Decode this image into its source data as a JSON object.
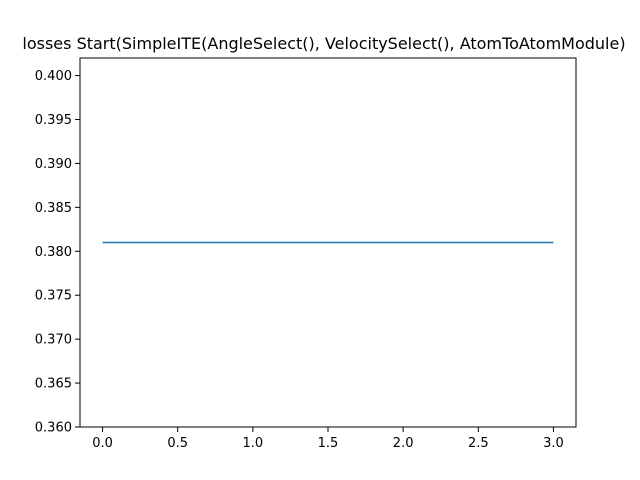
{
  "chart_data": {
    "type": "line",
    "title": "losses Start(SimpleITE(AngleSelect(), VelocitySelect(), AtomToAtomModule)",
    "xlabel": "",
    "ylabel": "",
    "xlim": [
      -0.15,
      3.15
    ],
    "ylim": [
      0.36,
      0.402
    ],
    "xticks": [
      0.0,
      0.5,
      1.0,
      1.5,
      2.0,
      2.5,
      3.0
    ],
    "xtick_labels": [
      "0.0",
      "0.5",
      "1.0",
      "1.5",
      "2.0",
      "2.5",
      "3.0"
    ],
    "yticks": [
      0.36,
      0.365,
      0.37,
      0.375,
      0.38,
      0.385,
      0.39,
      0.395,
      0.4
    ],
    "ytick_labels": [
      "0.360",
      "0.365",
      "0.370",
      "0.375",
      "0.380",
      "0.385",
      "0.390",
      "0.395",
      "0.400"
    ],
    "grid": false,
    "series": [
      {
        "x": [
          0,
          1,
          2,
          3
        ],
        "values": [
          0.381,
          0.381,
          0.381,
          0.381
        ],
        "color": "#1f77b4"
      }
    ]
  }
}
